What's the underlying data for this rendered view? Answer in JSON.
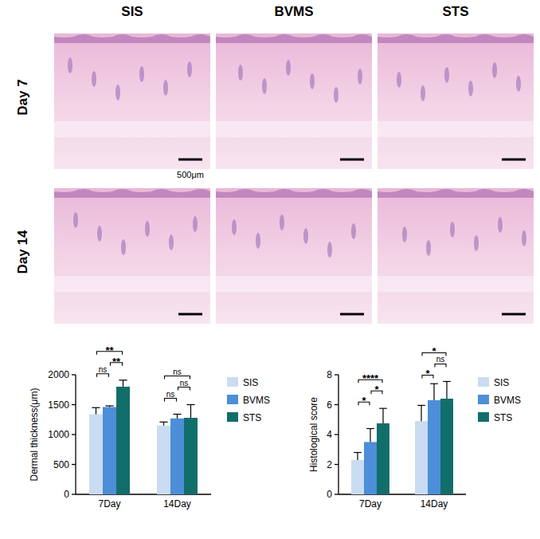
{
  "figure_panels": {
    "columns": [
      "SIS",
      "BVMS",
      "STS"
    ],
    "rows": [
      "Day 7",
      "Day 14"
    ],
    "scale_bar": "500μm"
  },
  "chart_data": [
    {
      "type": "bar",
      "y_label": "Dermal thickness(μm)",
      "categories": [
        "7Day",
        "14Day"
      ],
      "ylim": [
        0,
        2000
      ],
      "yticks": [
        0,
        500,
        1000,
        1500,
        2000
      ],
      "legend": "right",
      "series": [
        {
          "name": "SIS",
          "color": "#c9dcf2",
          "values": [
            1340,
            1150
          ],
          "errors": [
            110,
            60
          ]
        },
        {
          "name": "BVMS",
          "color": "#4c8ed8",
          "values": [
            1460,
            1270
          ],
          "errors": [
            20,
            70
          ]
        },
        {
          "name": "STS",
          "color": "#126e6b",
          "values": [
            1800,
            1280
          ],
          "errors": [
            110,
            220
          ]
        }
      ],
      "annotations": [
        {
          "text": "ns",
          "category": 0,
          "between": [
            0,
            1
          ]
        },
        {
          "text": "**",
          "category": 0,
          "between": [
            1,
            2
          ]
        },
        {
          "text": "**",
          "category": 0,
          "between": [
            0,
            2
          ]
        },
        {
          "text": "ns",
          "category": 1,
          "between": [
            0,
            1
          ]
        },
        {
          "text": "ns",
          "category": 1,
          "between": [
            1,
            2
          ]
        },
        {
          "text": "ns",
          "category": 1,
          "between": [
            0,
            2
          ]
        }
      ]
    },
    {
      "type": "bar",
      "y_label": "Histological score",
      "categories": [
        "7Day",
        "14Day"
      ],
      "ylim": [
        0,
        8
      ],
      "yticks": [
        0,
        2,
        4,
        6,
        8
      ],
      "legend": "right",
      "series": [
        {
          "name": "SIS",
          "color": "#c9dcf2",
          "values": [
            2.3,
            4.9
          ],
          "errors": [
            0.5,
            1.05
          ]
        },
        {
          "name": "BVMS",
          "color": "#4c8ed8",
          "values": [
            3.5,
            6.3
          ],
          "errors": [
            0.9,
            1.1
          ]
        },
        {
          "name": "STS",
          "color": "#126e6b",
          "values": [
            4.75,
            6.4
          ],
          "errors": [
            1.0,
            1.15
          ]
        }
      ],
      "annotations": [
        {
          "text": "*",
          "category": 0,
          "between": [
            0,
            1
          ]
        },
        {
          "text": "*",
          "category": 0,
          "between": [
            1,
            2
          ]
        },
        {
          "text": "****",
          "category": 0,
          "between": [
            0,
            2
          ]
        },
        {
          "text": "*",
          "category": 1,
          "between": [
            0,
            1
          ]
        },
        {
          "text": "ns",
          "category": 1,
          "between": [
            1,
            2
          ]
        },
        {
          "text": "*",
          "category": 1,
          "between": [
            0,
            2
          ]
        }
      ]
    }
  ]
}
